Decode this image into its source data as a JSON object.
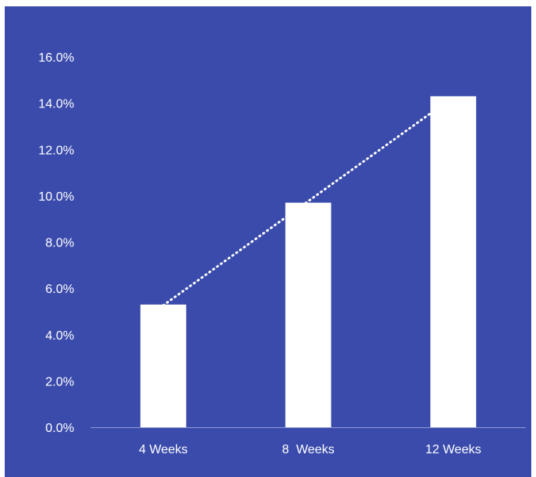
{
  "colors": {
    "background": "#3a4bab",
    "bars": "#ffffff",
    "trendline": "#ffffff",
    "axis_text": "#ffffff",
    "axis_line": "#8f9ad6"
  },
  "chart_data": {
    "type": "bar",
    "categories": [
      "4 Weeks",
      "8  Weeks",
      "12 Weeks"
    ],
    "values": [
      5.3,
      9.7,
      14.3
    ],
    "y_tick_labels": [
      "0.0%",
      "2.0%",
      "4.0%",
      "6.0%",
      "8.0%",
      "10.0%",
      "12.0%",
      "14.0%",
      "16.0%"
    ],
    "ylim": [
      0,
      16
    ],
    "y_unit": "%",
    "title": "",
    "xlabel": "",
    "ylabel": "",
    "grid": false,
    "legend": "none",
    "trendline": {
      "style": "dotted",
      "type": "linear"
    }
  }
}
